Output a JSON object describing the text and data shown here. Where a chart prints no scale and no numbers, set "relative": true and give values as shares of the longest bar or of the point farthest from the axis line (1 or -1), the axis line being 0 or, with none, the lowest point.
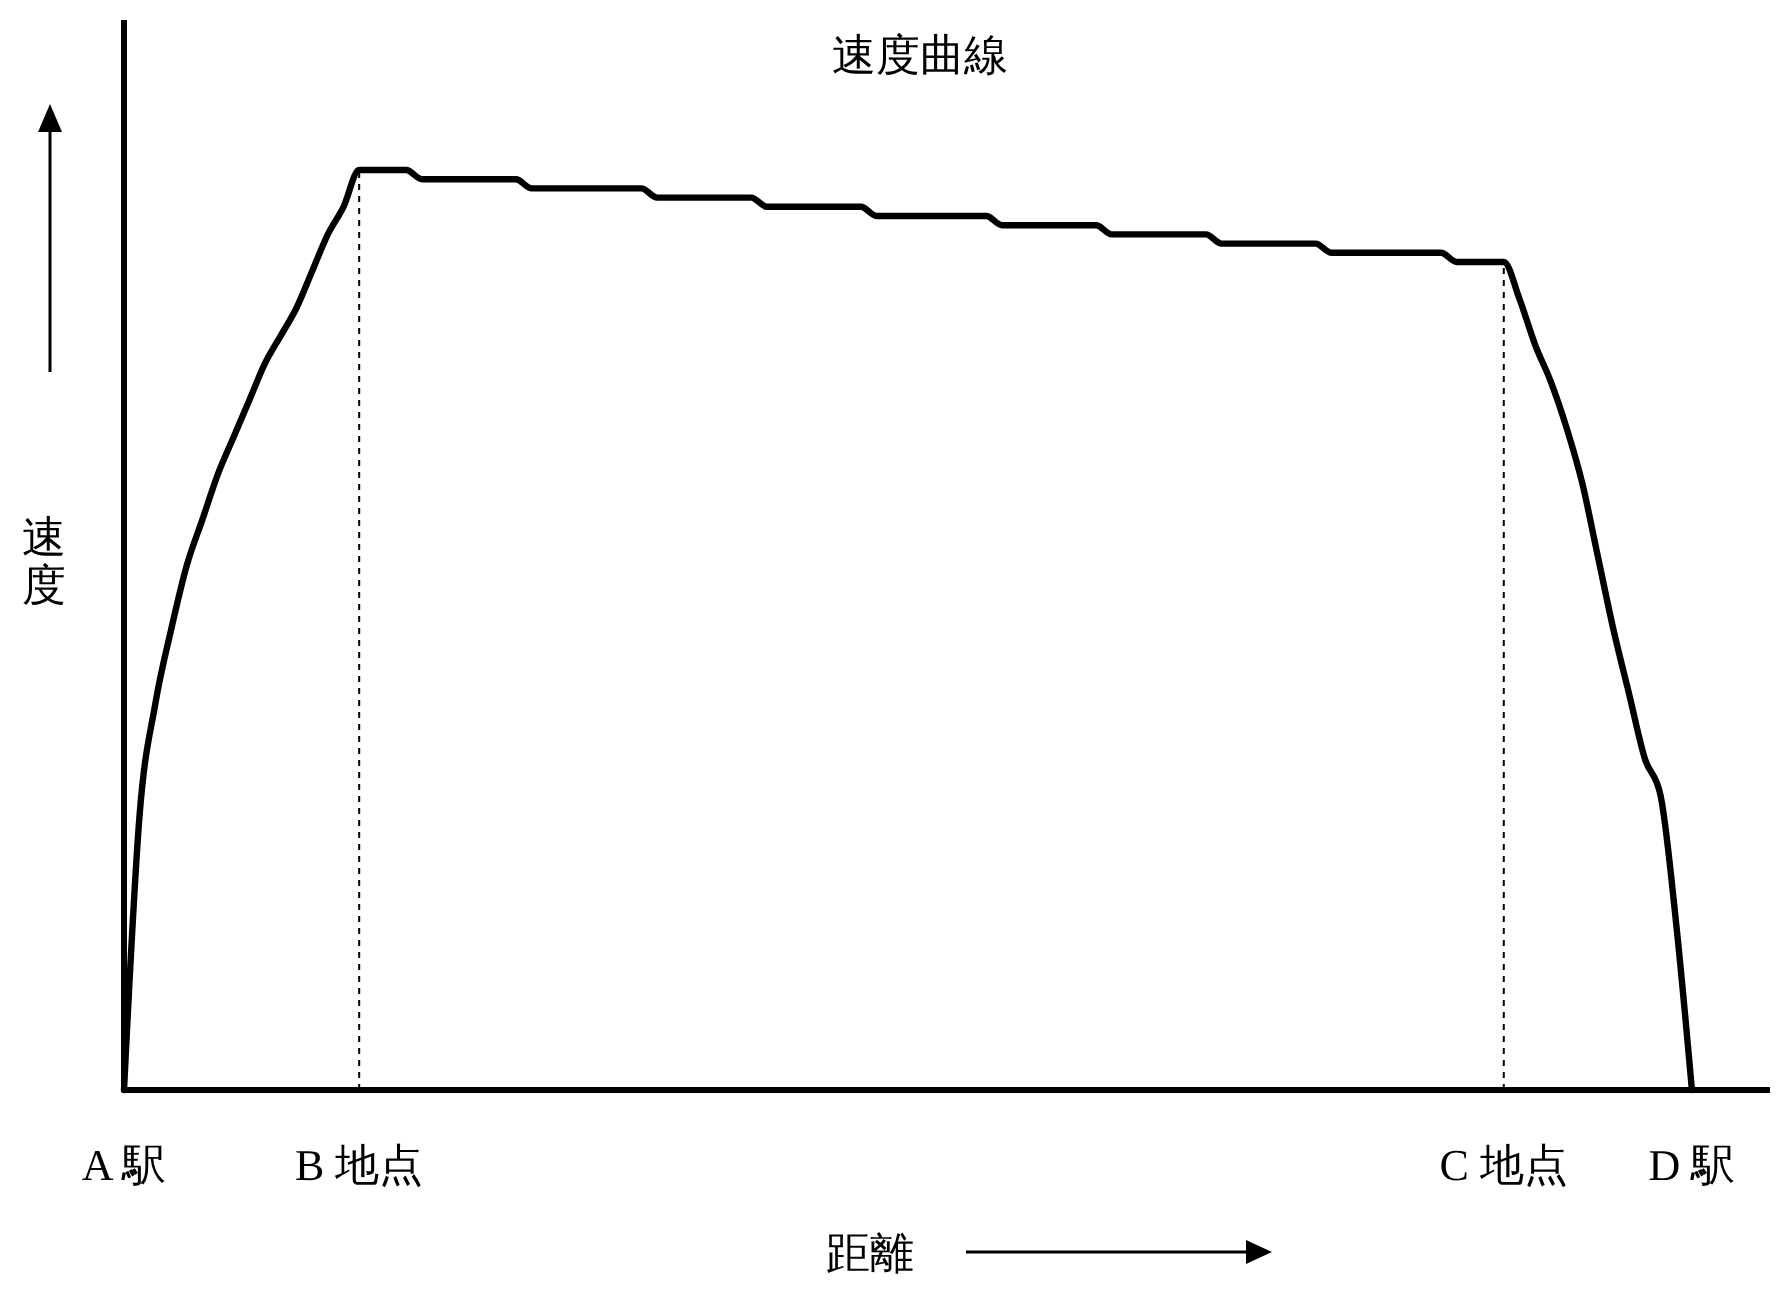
{
  "chart_data": {
    "type": "line",
    "title": "速度曲線",
    "xlabel": "距離",
    "ylabel": "速度",
    "relative": true,
    "grid": false,
    "marker": "none",
    "line_style": "solid",
    "legend": false,
    "categories": [
      "A 駅",
      null,
      null,
      null,
      null,
      null,
      null,
      null,
      null,
      null,
      null,
      null,
      null,
      null,
      null,
      "B 地点",
      null,
      null,
      null,
      null,
      null,
      null,
      null,
      null,
      null,
      null,
      null,
      null,
      null,
      null,
      null,
      null,
      null,
      null,
      null,
      null,
      null,
      null,
      null,
      null,
      null,
      null,
      null,
      null,
      null,
      null,
      null,
      null,
      null,
      null,
      null,
      null,
      null,
      null,
      null,
      null,
      null,
      null,
      null,
      null,
      null,
      null,
      null,
      null,
      null,
      null,
      null,
      null,
      null,
      null,
      null,
      null,
      null,
      null,
      null,
      null,
      null,
      null,
      null,
      null,
      null,
      null,
      null,
      null,
      null,
      null,
      null,
      null,
      "C 地点",
      null,
      null,
      null,
      null,
      null,
      null,
      null,
      null,
      null,
      null,
      null,
      "D 駅",
      null,
      null,
      null,
      null,
      null,
      null
    ],
    "series": [
      {
        "color": "#000000",
        "values": [
          0,
          0.3,
          0.42,
          0.5,
          0.57,
          0.62,
          0.67,
          0.71,
          0.75,
          0.79,
          0.82,
          0.85,
          0.89,
          0.93,
          0.96,
          1.0,
          1.0,
          1.0,
          1.0,
          0.99,
          0.99,
          0.99,
          0.99,
          0.99,
          0.99,
          0.99,
          0.98,
          0.98,
          0.98,
          0.98,
          0.98,
          0.98,
          0.98,
          0.98,
          0.97,
          0.97,
          0.97,
          0.97,
          0.97,
          0.97,
          0.97,
          0.96,
          0.96,
          0.96,
          0.96,
          0.96,
          0.96,
          0.96,
          0.95,
          0.95,
          0.95,
          0.95,
          0.95,
          0.95,
          0.95,
          0.95,
          0.94,
          0.94,
          0.94,
          0.94,
          0.94,
          0.94,
          0.94,
          0.93,
          0.93,
          0.93,
          0.93,
          0.93,
          0.93,
          0.93,
          0.92,
          0.92,
          0.92,
          0.92,
          0.92,
          0.92,
          0.92,
          0.91,
          0.91,
          0.91,
          0.91,
          0.91,
          0.91,
          0.91,
          0.91,
          0.9,
          0.9,
          0.9,
          0.9,
          0.86,
          0.81,
          0.77,
          0.72,
          0.66,
          0.58,
          0.5,
          0.43,
          0.36,
          0.32,
          0.18,
          0,
          null,
          null,
          null,
          null,
          null,
          null
        ]
      }
    ],
    "ref_lines": [
      {
        "axis": "x",
        "value": "B 地点",
        "color": "#000000",
        "line_style": "dashed"
      },
      {
        "axis": "x",
        "value": "C 地点",
        "color": "#000000",
        "line_style": "dashed"
      }
    ]
  }
}
